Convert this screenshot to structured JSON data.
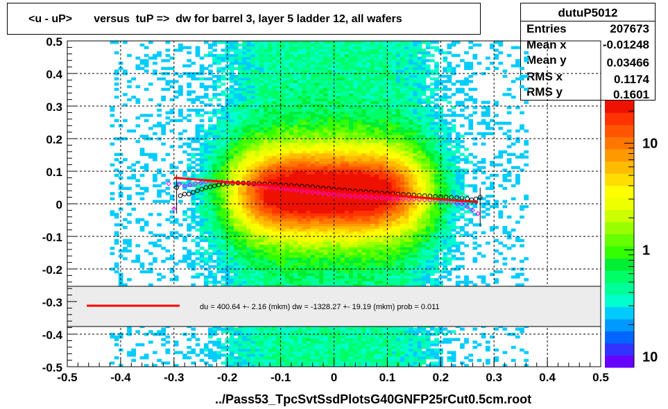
{
  "title": "<u - uP>       versus  tuP =>  dw for barrel 3, layer 5 ladder 12, all wafers",
  "stats": {
    "name": "dutuP5012",
    "rows": [
      {
        "label": "Entries",
        "value": "207673"
      },
      {
        "label": "Mean x",
        "value": "-0.01248"
      },
      {
        "label": "Mean y",
        "value": "0.03466"
      },
      {
        "label": "RMS x",
        "value": "0.1174"
      },
      {
        "label": "RMS y",
        "value": "0.1601"
      }
    ]
  },
  "xlabel": "../Pass53_TpcSvtSsdPlotsG40GNFP25rCut0.5cm.root",
  "fit_legend": "du =  400.64 +-  2.16 (mkm) dw = -1328.27 +- 19.19 (mkm) prob = 0.011",
  "colorbar_labels": [
    {
      "text": "10",
      "level": 10
    },
    {
      "text": "1",
      "level": 1
    },
    {
      "text": "10",
      "level": 0.1
    }
  ],
  "colors": {
    "fit_line": "#ff0000",
    "profile_black": "#000000",
    "profile_magenta": "#ff00ff"
  },
  "chart_data": {
    "type": "heatmap",
    "xlim": [
      -0.5,
      0.5
    ],
    "ylim": [
      -0.5,
      0.5
    ],
    "x_ticks": [
      -0.5,
      -0.4,
      -0.3,
      -0.2,
      -0.1,
      0,
      0.1,
      0.2,
      0.3,
      0.4,
      0.5
    ],
    "y_ticks": [
      -0.5,
      -0.4,
      -0.3,
      -0.2,
      -0.1,
      0,
      0.1,
      0.2,
      0.3,
      0.4,
      0.5
    ],
    "x_tick_labels": [
      "-0.5",
      "-0.4",
      "-0.3",
      "-0.2",
      "-0.1",
      "0",
      "0.1",
      "0.2",
      "0.3",
      "0.4",
      "0.5"
    ],
    "y_tick_labels": [
      "-0.5",
      "-0.4",
      "-0.3",
      "-0.2",
      "-0.1",
      "0",
      "0.1",
      "0.2",
      "0.3",
      "0.4",
      "0.5"
    ],
    "grid": true,
    "colorbar_scale": "log",
    "density_center": {
      "x": -0.01,
      "y": 0.035
    },
    "data_x_range": [
      -0.3,
      0.28
    ],
    "fit_line": {
      "x": [
        -0.3,
        0.27
      ],
      "y": [
        0.08,
        0.005
      ]
    },
    "profile_black": {
      "x": [
        -0.295,
        -0.288,
        -0.28,
        -0.272,
        -0.264,
        -0.256,
        -0.248,
        -0.24,
        -0.232,
        -0.224,
        -0.216,
        -0.208,
        -0.2,
        -0.19,
        -0.18,
        -0.17,
        -0.16,
        -0.15,
        -0.14,
        -0.13,
        -0.12,
        -0.11,
        -0.1,
        -0.09,
        -0.08,
        -0.07,
        -0.06,
        -0.05,
        -0.04,
        -0.03,
        -0.02,
        -0.01,
        0,
        0.01,
        0.02,
        0.03,
        0.04,
        0.05,
        0.06,
        0.07,
        0.08,
        0.09,
        0.1,
        0.11,
        0.12,
        0.13,
        0.14,
        0.15,
        0.16,
        0.17,
        0.18,
        0.19,
        0.2,
        0.21,
        0.22,
        0.23,
        0.24,
        0.25,
        0.258,
        0.266,
        0.274
      ],
      "y": [
        0.05,
        0.025,
        0.03,
        0.03,
        0.035,
        0.04,
        0.045,
        0.05,
        0.052,
        0.055,
        0.058,
        0.06,
        0.062,
        0.063,
        0.064,
        0.064,
        0.063,
        0.062,
        0.062,
        0.061,
        0.06,
        0.059,
        0.058,
        0.057,
        0.056,
        0.055,
        0.054,
        0.053,
        0.052,
        0.05,
        0.048,
        0.047,
        0.045,
        0.043,
        0.042,
        0.04,
        0.039,
        0.038,
        0.037,
        0.036,
        0.034,
        0.033,
        0.032,
        0.031,
        0.03,
        0.029,
        0.028,
        0.027,
        0.026,
        0.025,
        0.024,
        0.023,
        0.022,
        0.021,
        0.02,
        0.019,
        0.018,
        0.016,
        0.012,
        0.015,
        0.02
      ]
    },
    "profile_magenta": {
      "x": [
        -0.31,
        -0.3,
        -0.29,
        -0.28,
        -0.27,
        -0.26,
        -0.25,
        -0.24,
        -0.23,
        -0.22,
        -0.21,
        -0.2,
        -0.19,
        -0.18,
        -0.17,
        -0.16,
        -0.15,
        -0.14,
        -0.13,
        -0.12,
        -0.11,
        -0.1,
        -0.09,
        -0.08,
        -0.07,
        -0.06,
        -0.05,
        -0.04,
        -0.03,
        -0.02,
        -0.01,
        0,
        0.01,
        0.02,
        0.03,
        0.04,
        0.05,
        0.06,
        0.07,
        0.08,
        0.09,
        0.1,
        0.11,
        0.12,
        0.13,
        0.14,
        0.15,
        0.16,
        0.17,
        0.18,
        0.19,
        0.2,
        0.21,
        0.22,
        0.23,
        0.24,
        0.25,
        0.26,
        0.27
      ],
      "y": [
        0.062,
        -0.015,
        0.06,
        0.055,
        0.058,
        0.062,
        0.064,
        0.066,
        0.067,
        0.068,
        0.068,
        0.067,
        0.066,
        0.065,
        0.063,
        0.061,
        0.059,
        0.057,
        0.055,
        0.052,
        0.05,
        0.048,
        0.046,
        0.044,
        0.042,
        0.04,
        0.038,
        0.036,
        0.034,
        0.032,
        0.03,
        0.028,
        0.026,
        0.025,
        0.024,
        0.023,
        0.022,
        0.021,
        0.02,
        0.019,
        0.018,
        0.017,
        0.016,
        0.015,
        0.015,
        0.014,
        0.014,
        0.013,
        0.012,
        0.011,
        0.01,
        0.009,
        0.007,
        0.005,
        0.002,
        0.0,
        -0.01,
        -0.02,
        -0.03
      ]
    }
  }
}
